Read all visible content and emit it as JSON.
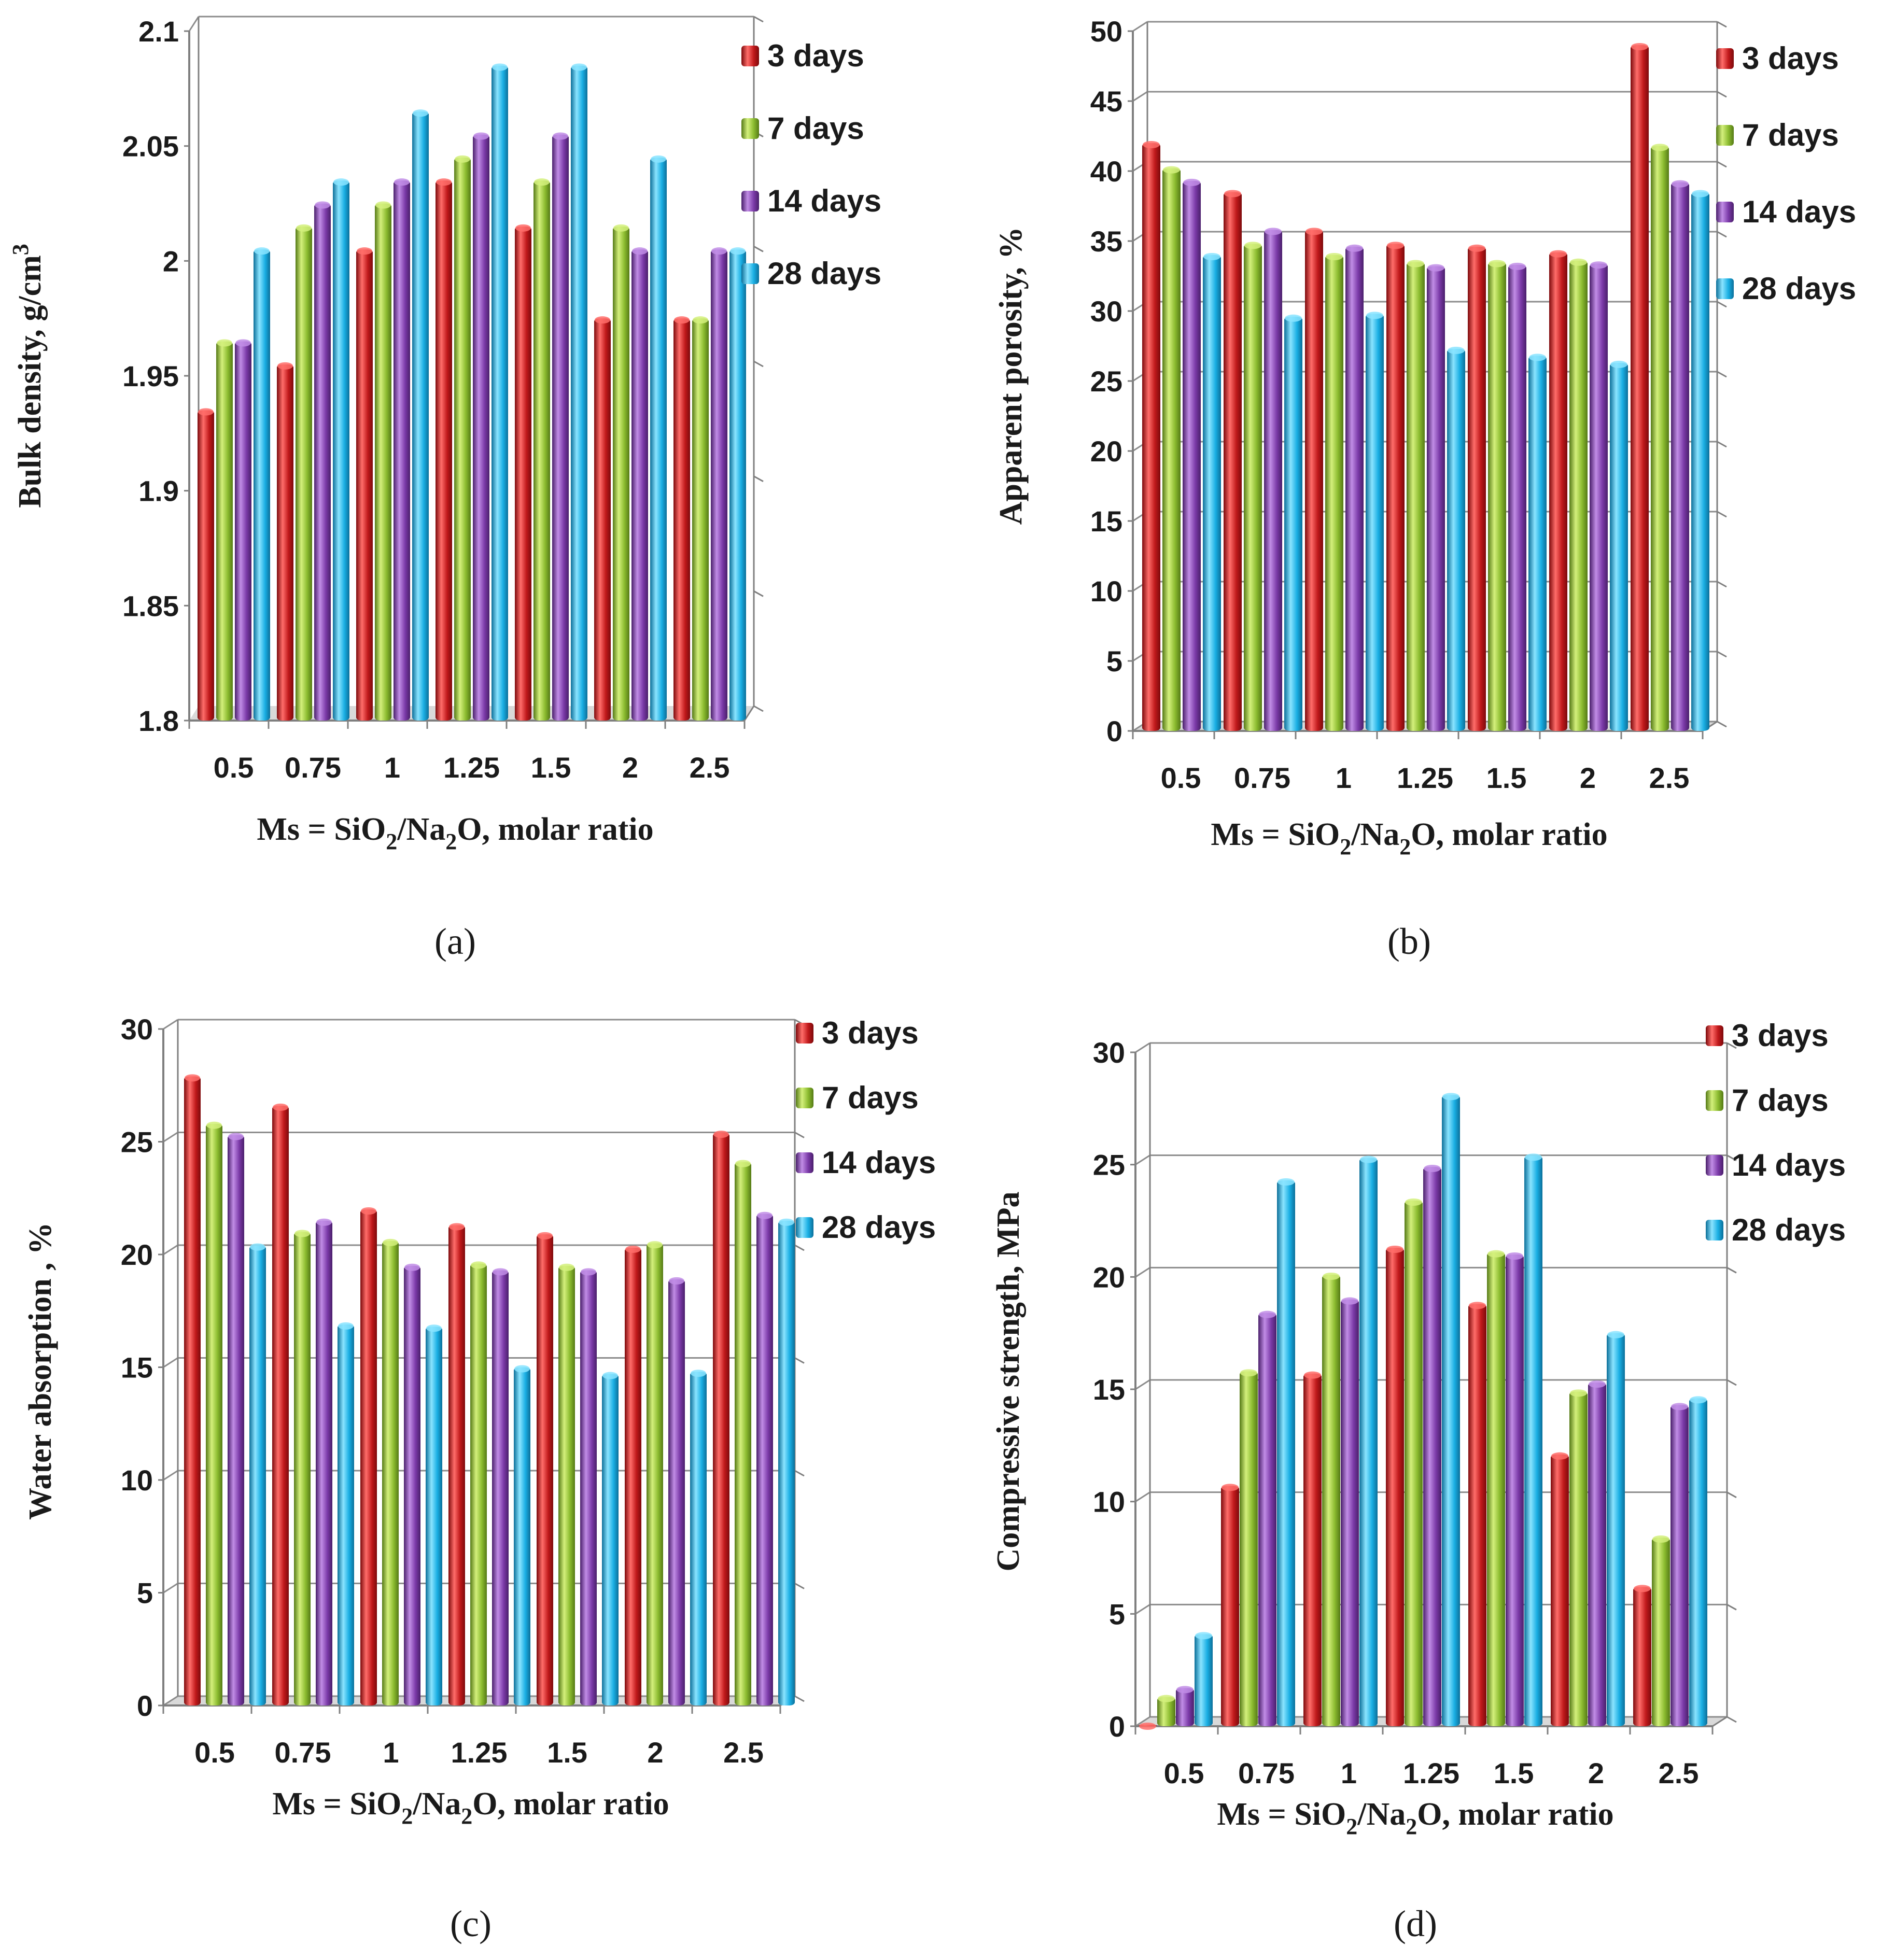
{
  "chart_data": [
    {
      "type": "bar",
      "caption": "(a)",
      "categories": [
        "0.5",
        "0.75",
        "1",
        "1.25",
        "1.5",
        "2",
        "2.5"
      ],
      "series": [
        {
          "name": "3 days",
          "values": [
            1.935,
            1.955,
            2.005,
            2.035,
            2.015,
            1.975,
            1.975
          ]
        },
        {
          "name": "7 days",
          "values": [
            1.965,
            2.015,
            2.025,
            2.045,
            2.035,
            2.015,
            1.975
          ]
        },
        {
          "name": "14 days",
          "values": [
            1.965,
            2.025,
            2.035,
            2.055,
            2.055,
            2.005,
            2.005
          ]
        },
        {
          "name": "28 days",
          "values": [
            2.005,
            2.035,
            2.065,
            2.085,
            2.085,
            2.045,
            2.005
          ]
        }
      ],
      "ylim": [
        1.8,
        2.1
      ],
      "yticks": [
        "1.8",
        "1.85",
        "1.9",
        "1.95",
        "2",
        "2.05",
        "2.1"
      ],
      "ylabel_text": "Bulk density, g/cm",
      "ylabel_sup": "3",
      "xlabel": {
        "pre": "Ms = SiO",
        "s1": "2",
        "mid": "/Na",
        "s2": "2",
        "post": "O, molar ratio"
      },
      "grid": false,
      "legend": "right"
    },
    {
      "type": "bar",
      "caption": "(b)",
      "categories": [
        "0.5",
        "0.75",
        "1",
        "1.25",
        "1.5",
        "2",
        "2.5"
      ],
      "series": [
        {
          "name": "3 days",
          "values": [
            42,
            38.5,
            35.8,
            34.8,
            34.6,
            34.2,
            49
          ]
        },
        {
          "name": "7 days",
          "values": [
            40.2,
            34.8,
            34,
            33.5,
            33.5,
            33.6,
            41.8
          ]
        },
        {
          "name": "14 days",
          "values": [
            39.3,
            35.8,
            34.6,
            33.2,
            33.3,
            33.4,
            39.2
          ]
        },
        {
          "name": "28 days",
          "values": [
            34,
            29.6,
            29.8,
            27.3,
            26.8,
            26.3,
            38.5
          ]
        }
      ],
      "ylim": [
        0,
        50
      ],
      "yticks": [
        "0",
        "5",
        "10",
        "15",
        "20",
        "25",
        "30",
        "35",
        "40",
        "45",
        "50"
      ],
      "ylabel_text": "Apparent porosity, %",
      "ylabel_sup": "",
      "xlabel": {
        "pre": "Ms = SiO",
        "s1": "2",
        "mid": "/Na",
        "s2": "2",
        "post": "O, molar ratio"
      },
      "grid": true,
      "legend": "right"
    },
    {
      "type": "bar",
      "caption": "(c)",
      "categories": [
        "0.5",
        "0.75",
        "1",
        "1.25",
        "1.5",
        "2",
        "2.5"
      ],
      "series": [
        {
          "name": "3 days",
          "values": [
            27.9,
            26.6,
            22,
            21.3,
            20.9,
            20.3,
            25.4
          ]
        },
        {
          "name": "7 days",
          "values": [
            25.8,
            21,
            20.6,
            19.6,
            19.5,
            20.5,
            24.1
          ]
        },
        {
          "name": "14 days",
          "values": [
            25.3,
            21.5,
            19.5,
            19.3,
            19.3,
            18.9,
            21.8
          ]
        },
        {
          "name": "28 days",
          "values": [
            20.4,
            16.9,
            16.8,
            15,
            14.7,
            14.8,
            21.5
          ]
        }
      ],
      "ylim": [
        0,
        30
      ],
      "yticks": [
        "0",
        "5",
        "10",
        "15",
        "20",
        "25",
        "30"
      ],
      "ylabel_text": "Water absorption ,  %",
      "ylabel_sup": "",
      "xlabel": {
        "pre": "Ms = SiO",
        "s1": "2",
        "mid": "/Na",
        "s2": "2",
        "post": "O, molar ratio"
      },
      "grid": true,
      "legend": "right"
    },
    {
      "type": "bar",
      "caption": "(d)",
      "categories": [
        "0.5",
        "0.75",
        "1",
        "1.25",
        "1.5",
        "2",
        "2.5"
      ],
      "series": [
        {
          "name": "3 days",
          "values": [
            0,
            10.7,
            15.7,
            21.3,
            18.8,
            12.1,
            6.2
          ]
        },
        {
          "name": "7 days",
          "values": [
            1.3,
            15.8,
            20.1,
            23.4,
            21.1,
            14.9,
            8.4
          ]
        },
        {
          "name": "14 days",
          "values": [
            1.7,
            18.4,
            19,
            24.9,
            21,
            15.3,
            14.3
          ]
        },
        {
          "name": "28 days",
          "values": [
            4.1,
            24.3,
            25.3,
            28.1,
            25.4,
            17.5,
            14.6
          ]
        }
      ],
      "ylim": [
        0,
        30
      ],
      "yticks": [
        "0",
        "5",
        "10",
        "15",
        "20",
        "25",
        "30"
      ],
      "ylabel_text": "Compressive strength, MPa",
      "ylabel_sup": "",
      "xlabel": {
        "pre": "Ms = SiO",
        "s1": "2",
        "mid": "/Na",
        "s2": "2",
        "post": "O, molar ratio"
      },
      "grid": true,
      "legend": "right"
    }
  ],
  "colors": {
    "series": [
      "#c0191b",
      "#8bbb2f",
      "#7b3aa8",
      "#19aee3"
    ],
    "series_light": [
      "#ff6d6a",
      "#d4f07c",
      "#c18de6",
      "#8ae4ff"
    ],
    "series_dark": [
      "#7d0a0c",
      "#557a16",
      "#4a1f6b",
      "#0c6f99"
    ],
    "axis": "#7f7f7f",
    "grid": "#8c8c8c",
    "floor": "#d9d9d9"
  }
}
